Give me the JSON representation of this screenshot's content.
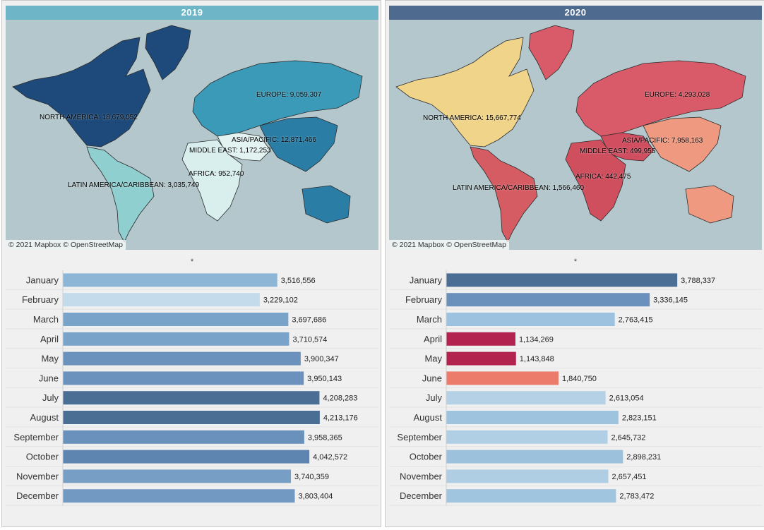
{
  "chart_data": [
    {
      "type": "map",
      "title": "2019",
      "header_color": "#6fb5c8",
      "attribution": "© 2021 Mapbox  © OpenStreetMap",
      "regions": [
        {
          "name": "NORTH AMERICA",
          "label": "NORTH AMERICA: 18,679,052",
          "value": 18679052,
          "color": "#1d4a7a"
        },
        {
          "name": "EUROPE",
          "label": "EUROPE: 9,059,307",
          "value": 9059307,
          "color": "#3a9ab8"
        },
        {
          "name": "ASIA/PACIFIC",
          "label": "ASIA/PACIFIC: 12,871,466",
          "value": 12871466,
          "color": "#2a7ea6"
        },
        {
          "name": "MIDDLE EAST",
          "label": "MIDDLE EAST: 1,172,253",
          "value": 1172253,
          "color": "#e2f3f1"
        },
        {
          "name": "AFRICA",
          "label": "AFRICA: 952,740",
          "value": 952740,
          "color": "#d8efee"
        },
        {
          "name": "LATIN AMERICA/CARIBBEAN",
          "label": "LATIN AMERICA/CARIBBEAN: 3,035,749",
          "value": 3035749,
          "color": "#8fcfd0"
        }
      ]
    },
    {
      "type": "map",
      "title": "2020",
      "header_color": "#4e6a8f",
      "attribution": "© 2021 Mapbox  © OpenStreetMap",
      "regions": [
        {
          "name": "NORTH AMERICA",
          "label": "NORTH AMERICA: 15,667,774",
          "value": 15667774,
          "color": "#f0d48a"
        },
        {
          "name": "EUROPE",
          "label": "EUROPE: 4,293,028",
          "value": 4293028,
          "color": "#d95a68"
        },
        {
          "name": "ASIA/PACIFIC",
          "label": "ASIA/PACIFIC: 7,958,163",
          "value": 7958163,
          "color": "#ef9a80"
        },
        {
          "name": "MIDDLE EAST",
          "label": "MIDDLE EAST: 499,955",
          "value": 499955,
          "color": "#d04e60"
        },
        {
          "name": "AFRICA",
          "label": "AFRICA: 442,475",
          "value": 442475,
          "color": "#cf4f5f"
        },
        {
          "name": "LATIN AMERICA/CARIBBEAN",
          "label": "LATIN AMERICA/CARIBBEAN: 1,566,460",
          "value": 1566460,
          "color": "#d65c63"
        }
      ]
    },
    {
      "type": "bar",
      "orientation": "horizontal",
      "year": "2019",
      "header": "*",
      "categories": [
        "January",
        "February",
        "March",
        "April",
        "May",
        "June",
        "July",
        "August",
        "September",
        "October",
        "November",
        "December"
      ],
      "values": [
        3516556,
        3229102,
        3697686,
        3710574,
        3900347,
        3950143,
        4208283,
        4213176,
        3958365,
        4042572,
        3740359,
        3803404
      ],
      "value_labels": [
        "3,516,556",
        "3,229,102",
        "3,697,686",
        "3,710,574",
        "3,900,347",
        "3,950,143",
        "4,208,283",
        "4,213,176",
        "3,958,365",
        "4,042,572",
        "3,740,359",
        "3,803,404"
      ],
      "colors": [
        "#8db6d6",
        "#c3dbeb",
        "#7aa3c9",
        "#7aa3c9",
        "#6b92bd",
        "#6b92bd",
        "#4b6e94",
        "#4b6e94",
        "#6a91bc",
        "#5e84b0",
        "#779fc6",
        "#7299c2"
      ],
      "xlim": [
        0,
        4400000
      ],
      "grid": true
    },
    {
      "type": "bar",
      "orientation": "horizontal",
      "year": "2020",
      "header": "*",
      "categories": [
        "January",
        "February",
        "March",
        "April",
        "May",
        "June",
        "July",
        "August",
        "September",
        "October",
        "November",
        "December"
      ],
      "values": [
        3788337,
        3336145,
        2763415,
        1134269,
        1143848,
        1840750,
        2613054,
        2823151,
        2645732,
        2898231,
        2657451,
        2783472
      ],
      "value_labels": [
        "3,788,337",
        "3,336,145",
        "2,763,415",
        "1,134,269",
        "1,143,848",
        "1,840,750",
        "2,613,054",
        "2,823,151",
        "2,645,732",
        "2,898,231",
        "2,657,451",
        "2,783,472"
      ],
      "colors": [
        "#4b6e94",
        "#6a91bc",
        "#9cc2df",
        "#b2234f",
        "#b2234f",
        "#ec7b6c",
        "#b4d1e6",
        "#9dc3de",
        "#b0cfe5",
        "#9bc1dd",
        "#afcee4",
        "#a0c5df"
      ],
      "xlim": [
        0,
        4400000
      ],
      "grid": true
    }
  ]
}
